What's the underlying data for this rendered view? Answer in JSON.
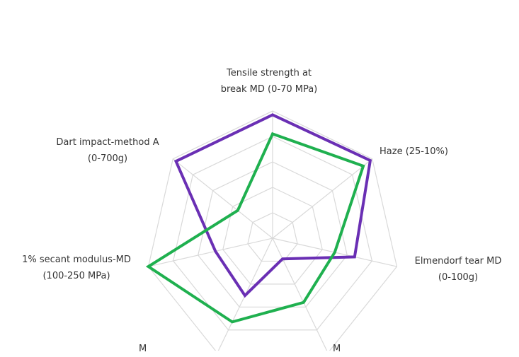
{
  "chart_data": {
    "type": "radar",
    "axes": [
      {
        "lines": [
          "Tensile strength at",
          "break MD (0-70 MPa)"
        ]
      },
      {
        "lines": [
          "Haze (25-10%)"
        ]
      },
      {
        "lines": [
          "Elmendorf tear MD",
          "(0-100g)"
        ]
      },
      {
        "lines": [
          "M",
          ""
        ]
      },
      {
        "lines": [
          "M",
          ""
        ]
      },
      {
        "lines": [
          "1% secant modulus-MD",
          "(100-250 MPa)"
        ]
      },
      {
        "lines": [
          "Dart impact-method A",
          "(0-700g)"
        ]
      }
    ],
    "rings": 5,
    "grid": true,
    "series": [
      {
        "color": "#6a2fb4",
        "values": [
          0.97,
          0.98,
          0.66,
          0.18,
          0.5,
          0.46,
          0.97
        ]
      },
      {
        "color": "#1fb04f",
        "values": [
          0.82,
          0.91,
          0.5,
          0.56,
          0.73,
          1.0,
          0.35
        ]
      }
    ]
  }
}
